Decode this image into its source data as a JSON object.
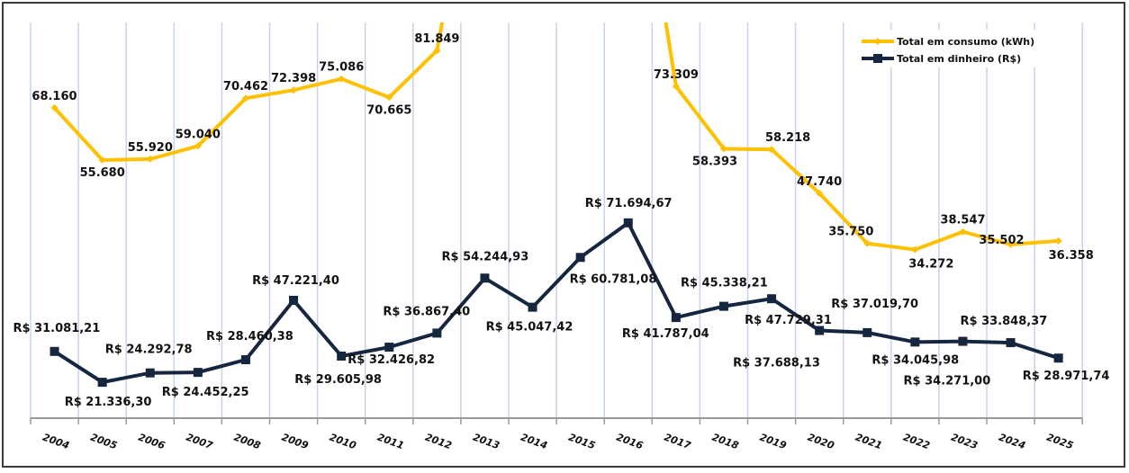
{
  "chart_data": {
    "type": "line",
    "title": "",
    "xlabel": "",
    "ylabel": "",
    "grid": "vertical",
    "legend_position": "top-right",
    "categories": [
      "2004",
      "2005",
      "2006",
      "2007",
      "2008",
      "2009",
      "2010",
      "2011",
      "2012",
      "2013",
      "2014",
      "2015",
      "2016",
      "2017",
      "2018",
      "2019",
      "2020",
      "2021",
      "2022",
      "2023",
      "2024",
      "2025"
    ],
    "series": [
      {
        "name": "Total em consumo (kWh)",
        "color": "#FFC000",
        "marker": "diamond",
        "axis": "secondary",
        "ylim": [
          -6000,
          88560
        ],
        "values": [
          68160,
          55680,
          55920,
          59040,
          70462,
          72398,
          75086,
          70665,
          81849,
          null,
          null,
          null,
          null,
          73309,
          58393,
          58218,
          47740,
          35750,
          34272,
          38547,
          35502,
          36358
        ],
        "labels": [
          "68.160",
          "55.680",
          "55.920",
          "59.040",
          "70.462",
          "72.398",
          "75.086",
          "70.665",
          "81.849",
          null,
          null,
          null,
          null,
          "73.309",
          "58.393",
          "58.218",
          "47.740",
          "35.750",
          "34.272",
          "38.547",
          "35.502",
          "36.358"
        ]
      },
      {
        "name": "Total em dinheiro (R$)",
        "color": "#17263F",
        "marker": "square",
        "axis": "primary",
        "ylim": [
          10000,
          135000
        ],
        "values": [
          31081.21,
          21336.3,
          24292.78,
          24452.25,
          28460.38,
          47221.4,
          29605.98,
          32426.82,
          36867.4,
          54244.93,
          45047.42,
          60781.08,
          71694.67,
          41787.04,
          45338.21,
          47729.31,
          37688.13,
          37019.7,
          34045.98,
          34271.0,
          33848.37,
          28971.74
        ],
        "labels": [
          "R$ 31.081,21",
          "R$ 21.336,30",
          "R$ 24.292,78",
          "R$ 24.452,25",
          "R$ 28.460,38",
          "R$ 47.221,40",
          "R$ 29.605,98",
          "R$ 32.426,82",
          "R$ 36.867,40",
          "R$ 54.244,93",
          "R$ 45.047,42",
          "R$ 60.781,08",
          "R$ 71.694,67",
          "R$ 41.787,04",
          "R$ 45.338,21",
          "R$ 47.729,31",
          "R$ 37.688,13",
          "R$ 37.019,70",
          "R$ 34.045,98",
          "R$ 34.271,00",
          "R$ 33.848,37",
          "R$ 28.971,74"
        ]
      }
    ],
    "legend": [
      "Total em consumo (kWh)",
      "Total em dinheiro (R$)"
    ],
    "gridline_color": "#C6D5EA",
    "axis_color": "#9A9A9A"
  }
}
